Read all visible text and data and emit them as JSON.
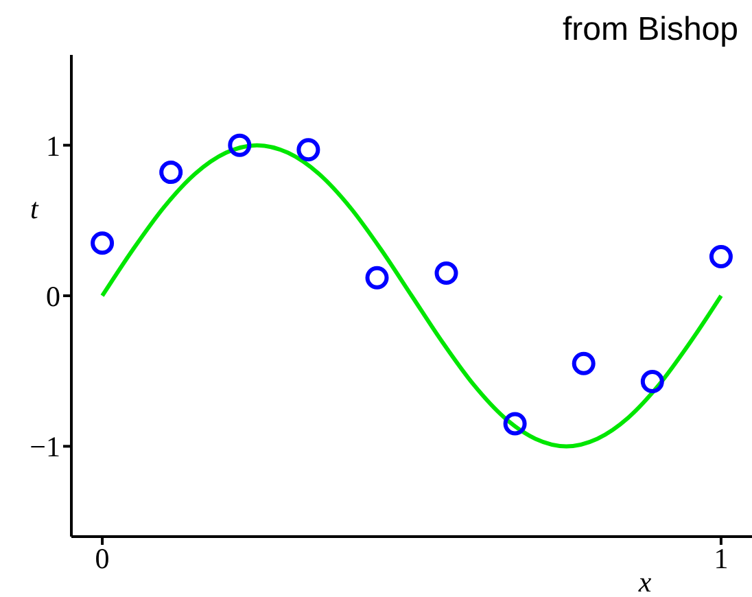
{
  "chart_data": {
    "type": "scatter",
    "xlabel": "x",
    "ylabel": "t",
    "annotations": [
      "from Bishop"
    ],
    "xlim": [
      -0.05,
      1.05
    ],
    "xticks": [
      0,
      1
    ],
    "ylim": [
      -1.6,
      1.6
    ],
    "yticks": [
      -1,
      0,
      1
    ],
    "series": [
      {
        "type": "line",
        "color": "#00e600",
        "line_style": "solid",
        "marker": "none",
        "x": [
          0,
          0.05,
          0.1,
          0.15,
          0.2,
          0.25,
          0.3,
          0.35,
          0.4,
          0.45,
          0.5,
          0.55,
          0.6,
          0.65,
          0.7,
          0.75,
          0.8,
          0.85,
          0.9,
          0.95,
          1
        ],
        "values": [
          0,
          0.31,
          0.59,
          0.81,
          0.95,
          1,
          0.95,
          0.81,
          0.59,
          0.31,
          0,
          -0.31,
          -0.59,
          -0.81,
          -0.95,
          -1,
          -0.95,
          -0.81,
          -0.59,
          -0.31,
          0
        ]
      },
      {
        "color": "#0000ff",
        "marker": "circle",
        "x": [
          0,
          0.111,
          0.222,
          0.333,
          0.444,
          0.556,
          0.667,
          0.778,
          0.889,
          1
        ],
        "values": [
          0.35,
          0.82,
          1.0,
          0.97,
          0.12,
          0.15,
          -0.85,
          -0.45,
          -0.57,
          0.26
        ]
      }
    ]
  }
}
